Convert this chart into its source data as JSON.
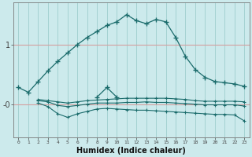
{
  "xlabel": "Humidex (Indice chaleur)",
  "bg_color": "#cceaec",
  "line_color": "#1a6b6b",
  "xlim": [
    -0.5,
    23.5
  ],
  "ylim": [
    -0.55,
    1.7
  ],
  "yticks": [
    0.0,
    1.0
  ],
  "ytick_labels": [
    "-0",
    "1"
  ],
  "xticks": [
    0,
    1,
    2,
    3,
    4,
    5,
    6,
    7,
    8,
    9,
    10,
    11,
    12,
    13,
    14,
    15,
    16,
    17,
    18,
    19,
    20,
    21,
    22,
    23
  ],
  "line1_x": [
    0,
    1,
    2,
    3,
    4,
    5,
    6,
    7,
    8,
    9,
    10,
    11,
    12,
    13,
    14,
    15,
    16,
    17,
    18,
    19,
    20,
    21,
    22,
    23
  ],
  "line1_y": [
    0.28,
    0.2,
    0.38,
    0.56,
    0.72,
    0.86,
    1.0,
    1.12,
    1.22,
    1.32,
    1.38,
    1.5,
    1.4,
    1.35,
    1.42,
    1.38,
    1.12,
    0.8,
    0.58,
    0.45,
    0.38,
    0.36,
    0.34,
    0.3
  ],
  "line2_x": [
    8,
    9,
    10
  ],
  "line2_y": [
    0.12,
    0.28,
    0.12
  ],
  "line3_x": [
    2,
    3,
    4,
    5,
    6,
    7,
    8,
    9,
    10,
    11,
    12,
    13,
    14,
    15,
    16,
    17,
    18,
    19,
    20,
    21,
    22,
    23
  ],
  "line3_y": [
    0.08,
    0.06,
    0.04,
    0.02,
    0.04,
    0.06,
    0.07,
    0.08,
    0.09,
    0.1,
    0.1,
    0.1,
    0.1,
    0.1,
    0.09,
    0.08,
    0.06,
    0.05,
    0.05,
    0.05,
    0.05,
    0.04
  ],
  "line4_x": [
    2,
    3,
    4,
    5,
    6,
    7,
    8,
    9,
    10,
    11,
    12,
    13,
    14,
    15,
    16,
    17,
    18,
    19,
    20,
    21,
    22,
    23
  ],
  "line4_y": [
    0.06,
    0.04,
    -0.02,
    -0.04,
    -0.02,
    0.0,
    0.02,
    0.02,
    0.02,
    0.03,
    0.03,
    0.04,
    0.03,
    0.03,
    0.02,
    0.01,
    0.0,
    -0.01,
    -0.01,
    -0.01,
    -0.01,
    -0.03
  ],
  "line5_x": [
    2,
    3,
    4,
    5,
    6,
    7,
    8,
    9,
    10,
    11,
    12,
    13,
    14,
    15,
    16,
    17,
    18,
    19,
    20,
    21,
    22,
    23
  ],
  "line5_y": [
    0.02,
    -0.04,
    -0.16,
    -0.22,
    -0.16,
    -0.12,
    -0.08,
    -0.07,
    -0.08,
    -0.09,
    -0.1,
    -0.1,
    -0.11,
    -0.12,
    -0.13,
    -0.14,
    -0.15,
    -0.16,
    -0.17,
    -0.17,
    -0.18,
    -0.28
  ]
}
